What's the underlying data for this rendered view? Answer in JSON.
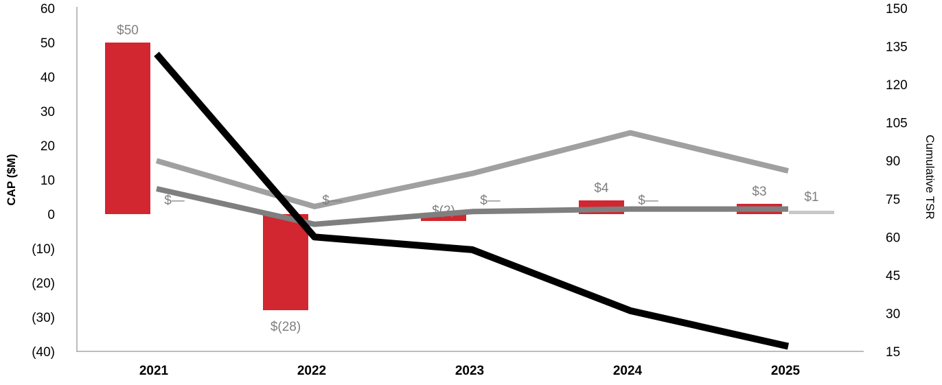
{
  "chart_data": {
    "type": "bar",
    "categories": [
      "2021",
      "2022",
      "2023",
      "2024",
      "2025"
    ],
    "ylabel": "CAP ($M)",
    "y2label": "Cumulative TSR",
    "ylim": [
      -40,
      60
    ],
    "yticks": [
      60,
      50,
      40,
      30,
      20,
      10,
      0,
      -10,
      -20,
      -30,
      -40
    ],
    "yticks_labels": [
      "60",
      "50",
      "40",
      "30",
      "20",
      "10",
      "0",
      "(10)",
      "(20)",
      "(30)",
      "(40)"
    ],
    "y2lim": [
      15,
      150
    ],
    "y2ticks": [
      150,
      135,
      120,
      105,
      90,
      75,
      60,
      45,
      30,
      15
    ],
    "y2ticks_labels": [
      "150",
      "135",
      "120",
      "105",
      "90",
      "75",
      "60",
      "45",
      "30",
      "15"
    ],
    "grid": false,
    "bars": [
      {
        "color": "#d22630",
        "values": [
          50,
          -28,
          -2,
          4,
          3
        ],
        "labels": [
          "$50",
          "$(28)",
          "$(2)",
          "$4",
          "$3"
        ]
      },
      {
        "color": "#c8c8c8",
        "values": [
          0,
          0,
          0,
          0,
          1
        ],
        "labels": [
          "$—",
          "$—",
          "$—",
          "$—",
          "$1"
        ]
      }
    ],
    "lines": [
      {
        "color": "#000000",
        "axis": "right",
        "values": [
          132,
          60,
          55,
          31,
          17
        ]
      },
      {
        "color": "#a0a0a0",
        "axis": "right",
        "values": [
          90,
          72,
          85,
          101,
          86
        ]
      },
      {
        "color": "#7f7f7f",
        "axis": "right",
        "values": [
          79,
          65,
          70,
          71,
          71
        ]
      }
    ]
  }
}
